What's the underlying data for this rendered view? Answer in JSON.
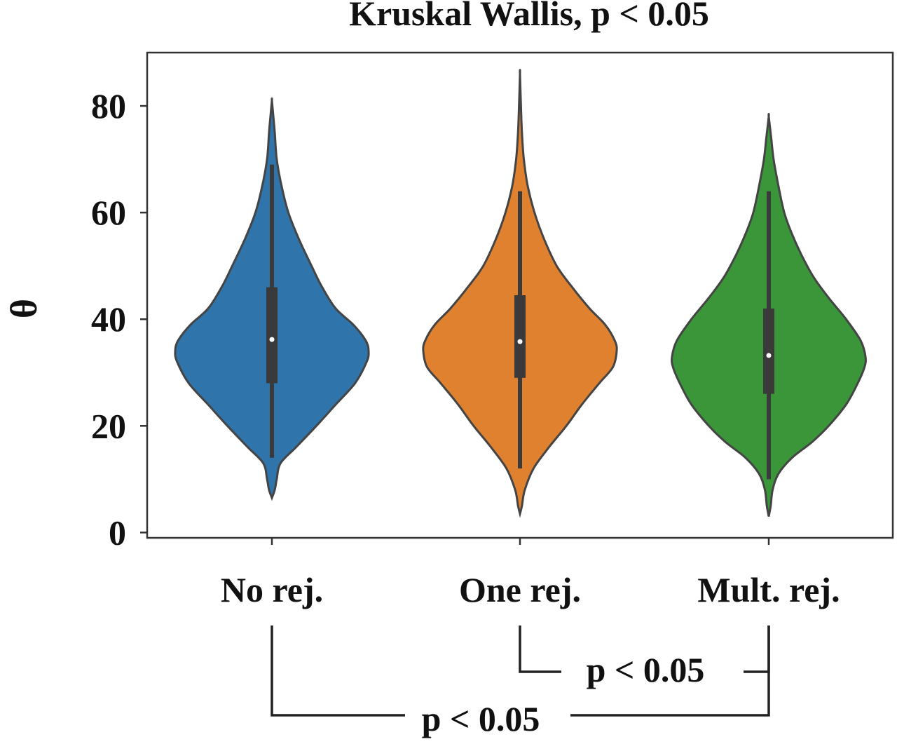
{
  "chart_data": {
    "type": "violin",
    "title": "Kruskal Wallis, p < 0.05",
    "xlabel": "",
    "ylabel": "θ",
    "ylim": [
      -1,
      90
    ],
    "yticks": [
      0,
      20,
      40,
      60,
      80
    ],
    "categories": [
      "No rej.",
      "One rej.",
      "Mult. rej."
    ],
    "grid": false,
    "series": [
      {
        "category": "No rej.",
        "color": "#2f74aa",
        "min": 6.5,
        "max": 81,
        "q1": 28,
        "median": 36.2,
        "q3": 46,
        "whisker_low": 14,
        "whisker_high": 69,
        "density_profile": [
          [
            6.5,
            0.0
          ],
          [
            8,
            0.03
          ],
          [
            10,
            0.05
          ],
          [
            13,
            0.09
          ],
          [
            16,
            0.25
          ],
          [
            20,
            0.46
          ],
          [
            24,
            0.66
          ],
          [
            28,
            0.86
          ],
          [
            32,
            0.98
          ],
          [
            34,
            1.0
          ],
          [
            36,
            0.97
          ],
          [
            39,
            0.84
          ],
          [
            42,
            0.66
          ],
          [
            46,
            0.52
          ],
          [
            50,
            0.41
          ],
          [
            55,
            0.28
          ],
          [
            60,
            0.17
          ],
          [
            65,
            0.1
          ],
          [
            70,
            0.05
          ],
          [
            75,
            0.03
          ],
          [
            78,
            0.015
          ],
          [
            81,
            0.0
          ]
        ]
      },
      {
        "category": "One rej.",
        "color": "#e0812f",
        "min": 3.5,
        "max": 86,
        "q1": 29,
        "median": 35.8,
        "q3": 44.5,
        "whisker_low": 12,
        "whisker_high": 64,
        "density_profile": [
          [
            3.5,
            0.0
          ],
          [
            5,
            0.02
          ],
          [
            8,
            0.05
          ],
          [
            12,
            0.14
          ],
          [
            16,
            0.3
          ],
          [
            20,
            0.48
          ],
          [
            24,
            0.64
          ],
          [
            28,
            0.82
          ],
          [
            31,
            0.96
          ],
          [
            34,
            1.0
          ],
          [
            36,
            0.98
          ],
          [
            39,
            0.88
          ],
          [
            42,
            0.72
          ],
          [
            46,
            0.54
          ],
          [
            50,
            0.38
          ],
          [
            55,
            0.25
          ],
          [
            60,
            0.15
          ],
          [
            65,
            0.08
          ],
          [
            70,
            0.04
          ],
          [
            75,
            0.02
          ],
          [
            80,
            0.01
          ],
          [
            86,
            0.0
          ]
        ]
      },
      {
        "category": "Mult. rej.",
        "color": "#3b963a",
        "min": 3,
        "max": 78,
        "q1": 26,
        "median": 33.2,
        "q3": 42,
        "whisker_low": 10,
        "whisker_high": 64,
        "density_profile": [
          [
            3,
            0.0
          ],
          [
            5,
            0.02
          ],
          [
            8,
            0.04
          ],
          [
            11,
            0.1
          ],
          [
            14,
            0.24
          ],
          [
            17,
            0.45
          ],
          [
            20,
            0.62
          ],
          [
            24,
            0.8
          ],
          [
            28,
            0.92
          ],
          [
            31,
            0.99
          ],
          [
            33,
            1.0
          ],
          [
            36,
            0.95
          ],
          [
            40,
            0.8
          ],
          [
            44,
            0.62
          ],
          [
            48,
            0.46
          ],
          [
            52,
            0.34
          ],
          [
            56,
            0.24
          ],
          [
            60,
            0.16
          ],
          [
            65,
            0.1
          ],
          [
            70,
            0.05
          ],
          [
            74,
            0.025
          ],
          [
            78,
            0.0
          ]
        ]
      }
    ],
    "comparisons": [
      {
        "pair": [
          "One rej.",
          "Mult. rej."
        ],
        "label": "p < 0.05"
      },
      {
        "pair": [
          "No rej.",
          "Mult. rej."
        ],
        "label": "p < 0.05"
      }
    ]
  }
}
